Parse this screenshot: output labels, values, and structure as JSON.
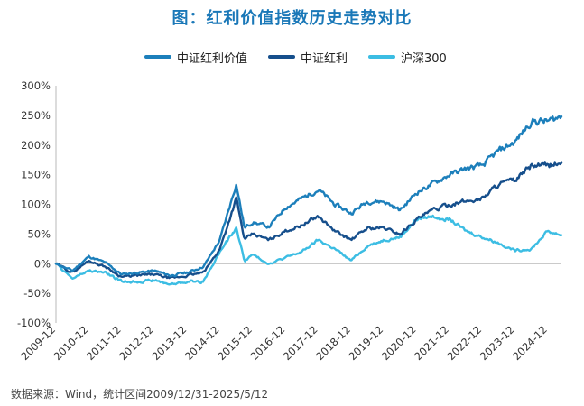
{
  "title": "图：红利价值指数历史走势对比",
  "source": "数据来源：Wind，统计区间2009/12/31-2025/5/12",
  "chart_data": {
    "type": "line",
    "title": "图：红利价值指数历史走势对比",
    "ylim": [
      -100,
      300
    ],
    "y_ticks": [
      "300%",
      "250%",
      "200%",
      "150%",
      "100%",
      "50%",
      "0%",
      "-50%",
      "-100%"
    ],
    "y_tick_values": [
      300,
      250,
      200,
      150,
      100,
      50,
      0,
      -50,
      -100
    ],
    "x_ticks": [
      "2009-12",
      "2010-12",
      "2011-12",
      "2012-12",
      "2013-12",
      "2014-12",
      "2015-12",
      "2016-12",
      "2017-12",
      "2018-12",
      "2019-12",
      "2020-12",
      "2021-12",
      "2022-12",
      "2023-12",
      "2024-12"
    ],
    "grid": false,
    "legend_position": "top",
    "series": [
      {
        "name": "中证红利价值",
        "color": "#1c7fbb",
        "points": [
          [
            "2009-12",
            0
          ],
          [
            "2010-06",
            -12
          ],
          [
            "2010-12",
            12
          ],
          [
            "2011-06",
            2
          ],
          [
            "2011-12",
            -18
          ],
          [
            "2012-06",
            -15
          ],
          [
            "2012-12",
            -12
          ],
          [
            "2013-06",
            -20
          ],
          [
            "2013-12",
            -15
          ],
          [
            "2014-06",
            -5
          ],
          [
            "2014-12",
            40
          ],
          [
            "2015-06",
            135
          ],
          [
            "2015-09",
            60
          ],
          [
            "2015-12",
            70
          ],
          [
            "2016-06",
            62
          ],
          [
            "2016-12",
            95
          ],
          [
            "2017-06",
            110
          ],
          [
            "2017-12",
            125
          ],
          [
            "2018-06",
            100
          ],
          [
            "2018-12",
            85
          ],
          [
            "2019-06",
            105
          ],
          [
            "2019-12",
            105
          ],
          [
            "2020-06",
            90
          ],
          [
            "2020-12",
            120
          ],
          [
            "2021-06",
            135
          ],
          [
            "2021-12",
            150
          ],
          [
            "2022-06",
            160
          ],
          [
            "2022-12",
            165
          ],
          [
            "2023-06",
            190
          ],
          [
            "2023-12",
            205
          ],
          [
            "2024-06",
            240
          ],
          [
            "2024-12",
            240
          ],
          [
            "2025-05",
            248
          ]
        ]
      },
      {
        "name": "中证红利",
        "color": "#164f8c",
        "points": [
          [
            "2009-12",
            0
          ],
          [
            "2010-06",
            -15
          ],
          [
            "2010-12",
            5
          ],
          [
            "2011-06",
            -5
          ],
          [
            "2011-12",
            -22
          ],
          [
            "2012-06",
            -20
          ],
          [
            "2012-12",
            -18
          ],
          [
            "2013-06",
            -25
          ],
          [
            "2013-12",
            -20
          ],
          [
            "2014-06",
            -15
          ],
          [
            "2014-12",
            25
          ],
          [
            "2015-06",
            110
          ],
          [
            "2015-09",
            40
          ],
          [
            "2015-12",
            50
          ],
          [
            "2016-06",
            40
          ],
          [
            "2016-12",
            55
          ],
          [
            "2017-06",
            65
          ],
          [
            "2017-12",
            80
          ],
          [
            "2018-06",
            55
          ],
          [
            "2018-12",
            40
          ],
          [
            "2019-06",
            60
          ],
          [
            "2019-12",
            60
          ],
          [
            "2020-06",
            50
          ],
          [
            "2020-12",
            75
          ],
          [
            "2021-06",
            90
          ],
          [
            "2021-12",
            100
          ],
          [
            "2022-06",
            105
          ],
          [
            "2022-12",
            110
          ],
          [
            "2023-06",
            135
          ],
          [
            "2023-12",
            140
          ],
          [
            "2024-06",
            165
          ],
          [
            "2024-12",
            165
          ],
          [
            "2025-05",
            170
          ]
        ]
      },
      {
        "name": "沪深300",
        "color": "#3cbde3",
        "points": [
          [
            "2009-12",
            0
          ],
          [
            "2010-06",
            -25
          ],
          [
            "2010-12",
            -12
          ],
          [
            "2011-06",
            -15
          ],
          [
            "2011-12",
            -30
          ],
          [
            "2012-06",
            -30
          ],
          [
            "2012-12",
            -28
          ],
          [
            "2013-06",
            -35
          ],
          [
            "2013-12",
            -30
          ],
          [
            "2014-06",
            -30
          ],
          [
            "2014-12",
            20
          ],
          [
            "2015-06",
            60
          ],
          [
            "2015-09",
            5
          ],
          [
            "2015-12",
            15
          ],
          [
            "2016-06",
            0
          ],
          [
            "2016-12",
            10
          ],
          [
            "2017-06",
            20
          ],
          [
            "2017-12",
            40
          ],
          [
            "2018-06",
            25
          ],
          [
            "2018-12",
            5
          ],
          [
            "2019-06",
            30
          ],
          [
            "2019-12",
            40
          ],
          [
            "2020-06",
            45
          ],
          [
            "2020-12",
            75
          ],
          [
            "2021-06",
            80
          ],
          [
            "2021-12",
            75
          ],
          [
            "2022-06",
            55
          ],
          [
            "2022-12",
            45
          ],
          [
            "2023-06",
            35
          ],
          [
            "2023-12",
            22
          ],
          [
            "2024-06",
            25
          ],
          [
            "2024-12",
            55
          ],
          [
            "2025-05",
            48
          ]
        ]
      }
    ]
  }
}
